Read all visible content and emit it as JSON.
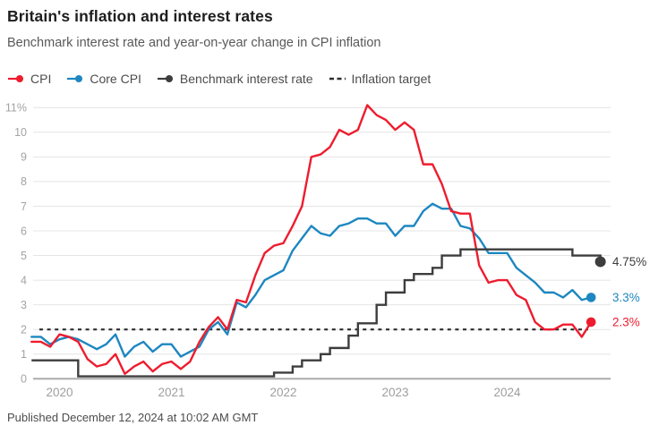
{
  "header": {
    "title": "Britain's inflation and interest rates",
    "subtitle": "Benchmark interest rate and year-on-year change in CPI inflation"
  },
  "legend": [
    {
      "label": "CPI",
      "color": "#ee1c2e",
      "marker": "line-dot"
    },
    {
      "label": "Core CPI",
      "color": "#1d87c0",
      "marker": "line-dot"
    },
    {
      "label": "Benchmark interest rate",
      "color": "#3d3d3d",
      "marker": "line-dot"
    },
    {
      "label": "Inflation target",
      "color": "#2d2d2d",
      "marker": "dashes"
    }
  ],
  "footer": {
    "published": "Published December 12, 2024 at 10:02 AM GMT"
  },
  "colors": {
    "cpi": "#ee1c2e",
    "core_cpi": "#1d87c0",
    "benchmark": "#3d3d3d",
    "target_dash": "#2d2d2d",
    "gridline": "#e4e4e4",
    "zero_axis": "#ababab",
    "y_tick_label": "#a3a3a3",
    "x_tick_label": "#9e9e9e"
  },
  "chart_data": {
    "type": "line",
    "title": "Britain's inflation and interest rates",
    "subtitle": "Benchmark interest rate and year-on-year change in CPI inflation",
    "unit": "%",
    "start_month": "2019-10",
    "x_tick_labels": [
      "2020",
      "2021",
      "2022",
      "2023",
      "2024"
    ],
    "y_ticks": [
      {
        "v": 0,
        "label": "0"
      },
      {
        "v": 1,
        "label": "1"
      },
      {
        "v": 2,
        "label": "2"
      },
      {
        "v": 3,
        "label": "3"
      },
      {
        "v": 4,
        "label": "4"
      },
      {
        "v": 5,
        "label": "5"
      },
      {
        "v": 6,
        "label": "6"
      },
      {
        "v": 7,
        "label": "7"
      },
      {
        "v": 8,
        "label": "8"
      },
      {
        "v": 9,
        "label": "9"
      },
      {
        "v": 10,
        "label": "10"
      },
      {
        "v": 11,
        "label": "11%"
      }
    ],
    "ylim": [
      0,
      11
    ],
    "grid": true,
    "legend_position": "top",
    "inflation_target": 2,
    "series": [
      {
        "name": "CPI",
        "color": "#ee1c2e",
        "style": "line",
        "values": [
          1.5,
          1.5,
          1.3,
          1.8,
          1.7,
          1.5,
          0.8,
          0.5,
          0.6,
          1.0,
          0.2,
          0.5,
          0.7,
          0.3,
          0.6,
          0.7,
          0.4,
          0.7,
          1.5,
          2.1,
          2.5,
          2.0,
          3.2,
          3.1,
          4.2,
          5.1,
          5.4,
          5.5,
          6.2,
          7.0,
          9.0,
          9.1,
          9.4,
          10.1,
          9.9,
          10.1,
          11.1,
          10.7,
          10.5,
          10.1,
          10.4,
          10.1,
          8.7,
          8.7,
          7.9,
          6.8,
          6.7,
          6.7,
          4.6,
          3.9,
          4.0,
          4.0,
          3.4,
          3.2,
          2.3,
          2.0,
          2.0,
          2.2,
          2.2,
          1.7,
          2.3
        ]
      },
      {
        "name": "Core CPI",
        "color": "#1d87c0",
        "style": "line",
        "values": [
          1.7,
          1.7,
          1.4,
          1.6,
          1.7,
          1.6,
          1.4,
          1.2,
          1.4,
          1.8,
          0.9,
          1.3,
          1.5,
          1.1,
          1.4,
          1.4,
          0.9,
          1.1,
          1.3,
          2.0,
          2.3,
          1.8,
          3.1,
          2.9,
          3.4,
          4.0,
          4.2,
          4.4,
          5.2,
          5.7,
          6.2,
          5.9,
          5.8,
          6.2,
          6.3,
          6.5,
          6.5,
          6.3,
          6.3,
          5.8,
          6.2,
          6.2,
          6.8,
          7.1,
          6.9,
          6.9,
          6.2,
          6.1,
          5.7,
          5.1,
          5.1,
          5.1,
          4.5,
          4.2,
          3.9,
          3.5,
          3.5,
          3.3,
          3.6,
          3.2,
          3.3
        ]
      },
      {
        "name": "Benchmark interest rate",
        "color": "#3d3d3d",
        "style": "step",
        "values": [
          0.75,
          0.75,
          0.75,
          0.75,
          0.75,
          0.1,
          0.1,
          0.1,
          0.1,
          0.1,
          0.1,
          0.1,
          0.1,
          0.1,
          0.1,
          0.1,
          0.1,
          0.1,
          0.1,
          0.1,
          0.1,
          0.1,
          0.1,
          0.1,
          0.1,
          0.1,
          0.25,
          0.25,
          0.5,
          0.75,
          0.75,
          1.0,
          1.25,
          1.25,
          1.75,
          2.25,
          2.25,
          3.0,
          3.5,
          3.5,
          4.0,
          4.25,
          4.25,
          4.5,
          5.0,
          5.0,
          5.25,
          5.25,
          5.25,
          5.25,
          5.25,
          5.25,
          5.25,
          5.25,
          5.25,
          5.25,
          5.25,
          5.25,
          5.0,
          5.0,
          5.0,
          4.75
        ]
      }
    ],
    "annotations": [
      {
        "label": "4.75%",
        "value": 4.75,
        "series": "Benchmark interest rate",
        "color": "#3d3d3d"
      },
      {
        "label": "3.3%",
        "value": 3.3,
        "series": "Core CPI",
        "color": "#1d87c0"
      },
      {
        "label": "2.3%",
        "value": 2.3,
        "series": "CPI",
        "color": "#ee1c2e"
      }
    ]
  }
}
